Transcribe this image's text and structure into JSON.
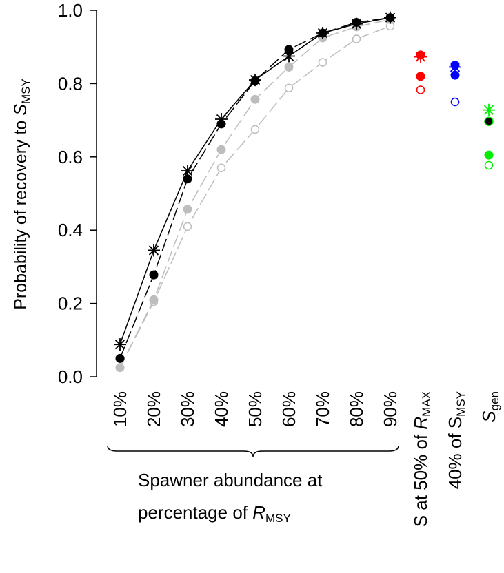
{
  "chart_data": {
    "type": "scatter",
    "title": "",
    "ylabel": {
      "main": "Probability of recovery to ",
      "italic": "S",
      "sub": "MSY"
    },
    "ylim": [
      0,
      1
    ],
    "yticks": [
      "0.0",
      "0.2",
      "0.4",
      "0.6",
      "0.8",
      "1.0"
    ],
    "categories": [
      "10%",
      "20%",
      "30%",
      "40%",
      "50%",
      "60%",
      "70%",
      "80%",
      "90%"
    ],
    "benchmark_labels": [
      {
        "pre": "S at 50% of ",
        "italic": "R",
        "sub": "MAX"
      },
      {
        "pre": "40% of S",
        "italic": "",
        "sub": "MSY"
      },
      {
        "pre": "",
        "italic": "S",
        "sub": "gen"
      }
    ],
    "group_label": {
      "line1": "Spawner abundance at",
      "line2_pre": "percentage of ",
      "line2_italic": "R",
      "line2_sub": "MSY"
    },
    "series": [
      {
        "marker": "star",
        "color": "#000000",
        "line": "solid",
        "lineColor": "#000000",
        "values": [
          0.088,
          0.345,
          0.562,
          0.703,
          0.81,
          0.875,
          0.938,
          0.963,
          0.98
        ]
      },
      {
        "marker": "filled",
        "color": "#000000",
        "line": "dashed",
        "lineColor": "#000000",
        "values": [
          0.05,
          0.278,
          0.54,
          0.69,
          0.808,
          0.893,
          0.938,
          0.967,
          0.98
        ]
      },
      {
        "marker": "filled",
        "color": "#bdbdbd",
        "line": "dashed",
        "lineColor": "#bdbdbd",
        "values": [
          0.025,
          0.21,
          0.457,
          0.62,
          0.757,
          0.845,
          0.925,
          0.955,
          0.975
        ]
      },
      {
        "marker": "open",
        "color": "#bdbdbd",
        "line": "dashed",
        "lineColor": "#bdbdbd",
        "values": [
          0.025,
          0.205,
          0.41,
          0.57,
          0.675,
          0.788,
          0.858,
          0.922,
          0.957
        ]
      }
    ],
    "benchmarks": [
      {
        "color": "#ff0000",
        "star": 0.873,
        "filled_dark": 0.878,
        "filled_light": 0.82,
        "open": 0.783
      },
      {
        "color": "#0000ff",
        "star": 0.845,
        "filled_dark": 0.85,
        "filled_light": 0.823,
        "open": 0.75
      },
      {
        "color": "#00ee00",
        "star": 0.728,
        "filled_dark": 0.697,
        "filled_light": 0.605,
        "open": 0.577,
        "dark_fill": "#000000"
      }
    ]
  }
}
